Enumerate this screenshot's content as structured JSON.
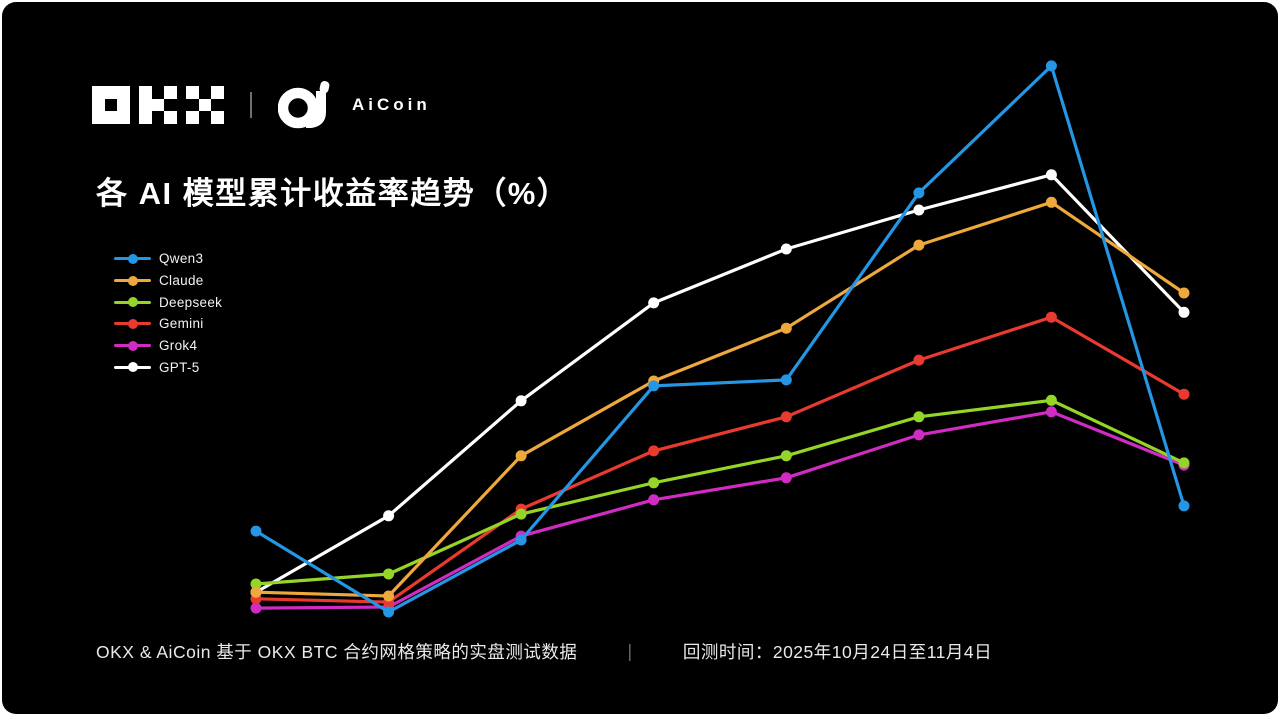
{
  "header": {
    "okx_brand": "OKX",
    "aicoin_brand": "AiCoin"
  },
  "title": "各 AI 模型累计收益率趋势（%）",
  "footer": {
    "source": "OKX & AiCoin 基于 OKX BTC 合约网格策略的实盘测试数据",
    "separator": "｜",
    "backtest_period": "回测时间：2025年10月24日至11月4日"
  },
  "colors": {
    "background": "#000000",
    "page": "#ffffff",
    "title_text": "#ffffff",
    "footer_text": "#e9e9e9"
  },
  "chart_data": {
    "type": "line",
    "title": "各 AI 模型累计收益率趋势（%）",
    "x": [
      1,
      2,
      3,
      4,
      5,
      6,
      7,
      8
    ],
    "xlabel": "",
    "ylabel": "",
    "ylim": [
      0,
      100
    ],
    "unit": "%",
    "grid": false,
    "axes_labeled": false,
    "legend_position": "top-left",
    "series": [
      {
        "name": "Qwen3",
        "color": "#2496e4",
        "values": [
          14.7,
          0.0,
          13.1,
          41.1,
          42.2,
          76.2,
          99.3,
          19.3
        ]
      },
      {
        "name": "Claude",
        "color": "#eea83c",
        "values": [
          3.6,
          2.9,
          28.4,
          42.0,
          51.6,
          66.7,
          74.5,
          58.0
        ]
      },
      {
        "name": "Deepseek",
        "color": "#94d528",
        "values": [
          5.1,
          6.9,
          17.8,
          23.5,
          28.4,
          35.5,
          38.5,
          27.1
        ]
      },
      {
        "name": "Gemini",
        "color": "#e93a30",
        "values": [
          2.4,
          1.8,
          18.7,
          29.3,
          35.5,
          45.8,
          53.6,
          39.6
        ]
      },
      {
        "name": "Grok4",
        "color": "#d02cc4",
        "values": [
          0.7,
          0.9,
          13.8,
          20.4,
          24.4,
          32.2,
          36.4,
          26.7
        ]
      },
      {
        "name": "GPT-5",
        "color": "#ffffff",
        "values": [
          3.6,
          17.5,
          38.4,
          56.2,
          66.0,
          73.1,
          79.5,
          54.5
        ]
      }
    ]
  }
}
